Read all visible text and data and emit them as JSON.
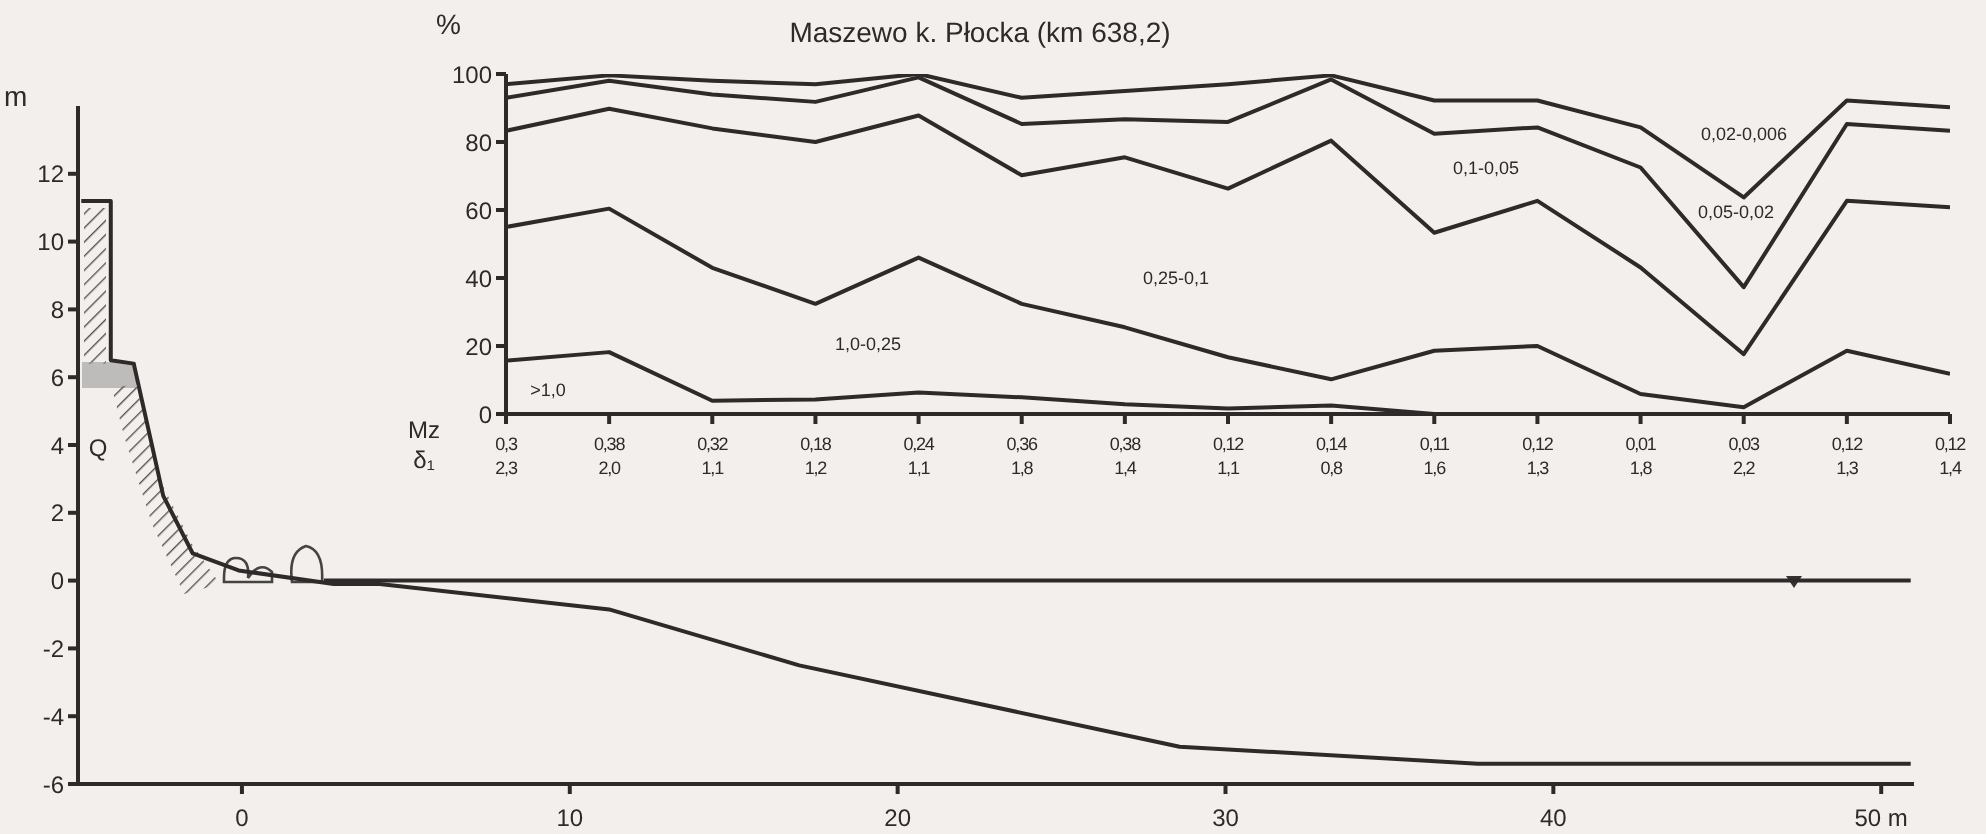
{
  "chart_data": [
    {
      "type": "line",
      "ylabel": "m",
      "xlim": [
        -5,
        51
      ],
      "xticks": [
        0,
        10,
        20,
        30,
        40,
        {
          "value": 50,
          "label": "50 m"
        }
      ],
      "ylim": [
        -6,
        14
      ],
      "yticks": [
        -6,
        -4,
        -2,
        0,
        2,
        4,
        6,
        8,
        10,
        12
      ],
      "grid": false,
      "legend": false,
      "marker": "none",
      "line_style": "solid",
      "annotations": [
        "Q"
      ],
      "series": [
        {
          "color": "#2e2a2a",
          "x": [
            -4.9,
            -4.0,
            -4.0,
            -3.3,
            -2.4,
            -1.5,
            -0.1,
            2.8,
            4.2,
            11.2,
            17.0,
            28.6,
            37.7,
            50.9
          ],
          "values": [
            11.2,
            11.2,
            6.5,
            6.4,
            2.5,
            0.8,
            0.3,
            -0.1,
            -0.1,
            -0.85,
            -2.5,
            -4.9,
            -5.4,
            -5.4
          ]
        },
        {
          "color": "#2e2a2a",
          "x": [
            2.5,
            50.9
          ],
          "values": [
            0,
            0
          ]
        }
      ]
    },
    {
      "type": "line",
      "title": "Maszewo k. Płocka (km 638,2)",
      "ylabel": "%",
      "categories": [
        "0,3\n2,3",
        "0,38\n2,0",
        "0,32\n1,1",
        "0,18\n1,2",
        "0,24\n1,1",
        "0,36\n1,8",
        "0,38\n1,4",
        "0,12\n1,1",
        "0,14\n0,8",
        "0,11\n1,6",
        "0,12\n1,3",
        "0,01\n1,8",
        "0,03\n2,2",
        "0,12\n1,3",
        "0,12\n1,4"
      ],
      "ylim": [
        0,
        100
      ],
      "yticks": [
        0,
        20,
        40,
        60,
        80,
        100
      ],
      "grid": false,
      "legend": false,
      "marker": "none",
      "line_style": "solid",
      "annotations": [
        "Mz",
        "δ₁",
        ">1,0",
        "1,0-0,25",
        "0,25-0,1",
        "0,1-0,05",
        "0,05-0,02",
        "0,02-0,006"
      ],
      "series": [
        {
          "color": "#2e2a2a",
          "values": [
            15.7,
            18.2,
            3.9,
            4.3,
            6.3,
            4.9,
            2.9,
            1.6,
            2.5,
            0,
            0,
            0,
            0,
            0,
            0
          ]
        },
        {
          "color": "#2e2a2a",
          "values": [
            55,
            60.4,
            43,
            32.4,
            46,
            32.4,
            25.5,
            16.7,
            10.2,
            18.6,
            20,
            5.9,
            2,
            18.6,
            11.8
          ]
        },
        {
          "color": "#2e2a2a",
          "values": [
            83.3,
            89.8,
            84,
            80,
            87.8,
            70.2,
            75.5,
            66.3,
            80.4,
            53.3,
            62.7,
            43.1,
            17.6,
            62.7,
            60.8
          ]
        },
        {
          "color": "#2e2a2a",
          "values": [
            93,
            98,
            94,
            91.8,
            99,
            85.3,
            86.7,
            85.9,
            98.4,
            82.4,
            84.3,
            72.5,
            37.3,
            85.3,
            83.3
          ]
        },
        {
          "color": "#2e2a2a",
          "values": [
            97,
            99.6,
            98,
            97,
            100,
            93,
            95,
            97,
            99.6,
            92.2,
            92.2,
            84.3,
            63.7,
            92.2,
            90.2
          ]
        }
      ]
    }
  ]
}
